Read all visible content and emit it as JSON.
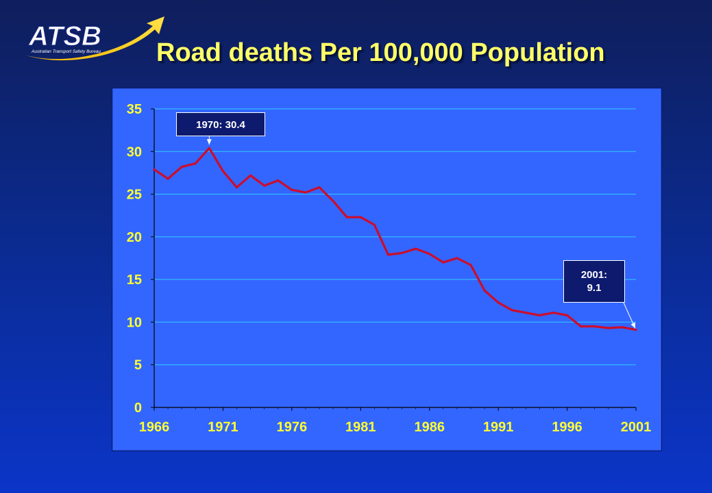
{
  "logo": {
    "wordmark": "ATSB",
    "tagline": "Australian Transport Safety Bureau"
  },
  "title": "Road deaths Per 100,000 Population",
  "chart_data": {
    "type": "line",
    "title": "",
    "xlabel": "",
    "ylabel": "",
    "xlim": [
      1966,
      2001
    ],
    "ylim": [
      0,
      35
    ],
    "y_ticks": [
      "0",
      "5",
      "10",
      "15",
      "20",
      "25",
      "30",
      "35"
    ],
    "x_ticks": [
      "1966",
      "1971",
      "1976",
      "1981",
      "1986",
      "1991",
      "1996",
      "2001"
    ],
    "grid": "horizontal",
    "legend": "none",
    "series": [
      {
        "color": "#cc0d2b",
        "x": [
          1966,
          1967,
          1968,
          1969,
          1970,
          1971,
          1972,
          1973,
          1974,
          1975,
          1976,
          1977,
          1978,
          1979,
          1980,
          1981,
          1982,
          1983,
          1984,
          1985,
          1986,
          1987,
          1988,
          1989,
          1990,
          1991,
          1992,
          1993,
          1994,
          1995,
          1996,
          1997,
          1998,
          1999,
          2000,
          2001
        ],
        "y": [
          27.9,
          26.8,
          28.2,
          28.6,
          30.4,
          27.7,
          25.8,
          27.2,
          26.0,
          26.6,
          25.5,
          25.2,
          25.8,
          24.2,
          22.3,
          22.3,
          21.4,
          17.9,
          18.1,
          18.6,
          18.0,
          17.0,
          17.5,
          16.7,
          13.7,
          12.3,
          11.4,
          11.1,
          10.8,
          11.1,
          10.8,
          9.5,
          9.5,
          9.3,
          9.4,
          9.1
        ]
      }
    ],
    "annotations": [
      {
        "label": "1970: 30.4",
        "x": 1970,
        "y": 30.4
      },
      {
        "label": "2001:\n9.1",
        "x": 2001,
        "y": 9.1
      }
    ],
    "colors": {
      "plot_background": "#3366ff",
      "panel_border": "#0d1a6e",
      "gridline": "#33ccff",
      "tick_label": "#ffff33",
      "axis": "#000000",
      "annotation_box": "#0d1a6e",
      "title": "#ffff66"
    }
  }
}
